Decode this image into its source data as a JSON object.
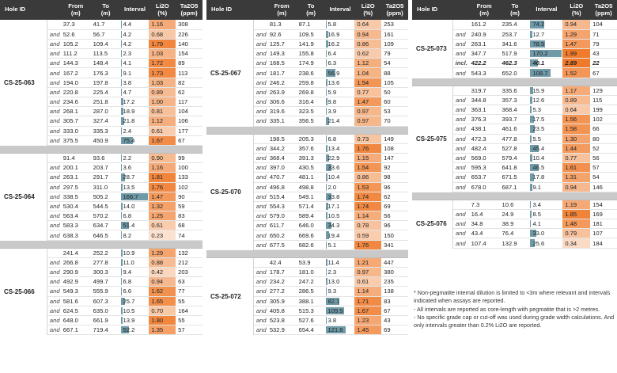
{
  "headers": {
    "hole_id": "Hole ID",
    "from": "From",
    "from_unit": "(m)",
    "to": "To",
    "to_unit": "(m)",
    "interval": "Interval",
    "li2o": "Li2O",
    "li2o_unit": "(%)",
    "ta2o5": "Ta2O5",
    "ta2o5_unit": "(ppm)"
  },
  "colors": {
    "header_bg": "#3a3a3a",
    "interval_bar": "#6f9aa8",
    "li2o_low": "#fbe4d3",
    "li2o_high": "#f07a2a",
    "separator": "#c9c9c9"
  },
  "panels": [
    {
      "holes": [
        {
          "id": "CS-25-063",
          "rows": [
            {
              "pre": "",
              "from": "37.3",
              "to": "41.7",
              "interval": "4.4",
              "li2o": "1.16",
              "ta2o5": "308"
            },
            {
              "pre": "and",
              "from": "52.6",
              "to": "56.7",
              "interval": "4.2",
              "li2o": "0.68",
              "ta2o5": "226"
            },
            {
              "pre": "and",
              "from": "105.2",
              "to": "109.4",
              "interval": "4.2",
              "li2o": "1.79",
              "ta2o5": "140"
            },
            {
              "pre": "and",
              "from": "111.2",
              "to": "113.5",
              "interval": "2.3",
              "li2o": "1.03",
              "ta2o5": "154"
            },
            {
              "pre": "and",
              "from": "144.3",
              "to": "148.4",
              "interval": "4.1",
              "li2o": "1.72",
              "ta2o5": "89"
            },
            {
              "pre": "and",
              "from": "167.2",
              "to": "176.3",
              "interval": "9.1",
              "li2o": "1.73",
              "ta2o5": "113"
            },
            {
              "pre": "and",
              "from": "194.0",
              "to": "197.8",
              "interval": "3.8",
              "li2o": "1.03",
              "ta2o5": "82"
            },
            {
              "pre": "and",
              "from": "220.8",
              "to": "225.4",
              "interval": "4.7",
              "li2o": "0.89",
              "ta2o5": "62"
            },
            {
              "pre": "and",
              "from": "234.6",
              "to": "251.8",
              "interval": "17.2",
              "li2o": "1.00",
              "ta2o5": "117"
            },
            {
              "pre": "and",
              "from": "268.1",
              "to": "287.0",
              "interval": "18.9",
              "li2o": "0.81",
              "ta2o5": "104"
            },
            {
              "pre": "and",
              "from": "305.7",
              "to": "327.4",
              "interval": "21.8",
              "li2o": "1.12",
              "ta2o5": "106"
            },
            {
              "pre": "and",
              "from": "333.0",
              "to": "335.3",
              "interval": "2.4",
              "li2o": "0.61",
              "ta2o5": "177"
            },
            {
              "pre": "and",
              "from": "375.5",
              "to": "450.9",
              "interval": "75.4",
              "li2o": "1.67",
              "ta2o5": "67"
            }
          ]
        },
        {
          "id": "CS-25-064",
          "rows": [
            {
              "pre": "",
              "from": "91.4",
              "to": "93.6",
              "interval": "2.2",
              "li2o": "0.90",
              "ta2o5": "99"
            },
            {
              "pre": "and",
              "from": "200.1",
              "to": "203.7",
              "interval": "3.6",
              "li2o": "1.16",
              "ta2o5": "100"
            },
            {
              "pre": "and",
              "from": "263.1",
              "to": "291.7",
              "interval": "28.7",
              "li2o": "1.81",
              "ta2o5": "133"
            },
            {
              "pre": "and",
              "from": "297.5",
              "to": "311.0",
              "interval": "13.5",
              "li2o": "1.76",
              "ta2o5": "102"
            },
            {
              "pre": "and",
              "from": "338.5",
              "to": "505.2",
              "interval": "166.7",
              "li2o": "1.47",
              "ta2o5": "90"
            },
            {
              "pre": "and",
              "from": "530.4",
              "to": "544.5",
              "interval": "14.0",
              "li2o": "1.32",
              "ta2o5": "59"
            },
            {
              "pre": "and",
              "from": "563.4",
              "to": "570.2",
              "interval": "6.8",
              "li2o": "1.25",
              "ta2o5": "83"
            },
            {
              "pre": "and",
              "from": "583.3",
              "to": "634.7",
              "interval": "51.4",
              "li2o": "0.61",
              "ta2o5": "68"
            },
            {
              "pre": "and",
              "from": "638.3",
              "to": "646.5",
              "interval": "8.2",
              "li2o": "0.23",
              "ta2o5": "74"
            }
          ]
        },
        {
          "id": "CS-25-066",
          "rows": [
            {
              "pre": "",
              "from": "241.4",
              "to": "252.2",
              "interval": "10.9",
              "li2o": "1.29",
              "ta2o5": "132"
            },
            {
              "pre": "and",
              "from": "266.8",
              "to": "277.8",
              "interval": "11.0",
              "li2o": "0.88",
              "ta2o5": "212"
            },
            {
              "pre": "and",
              "from": "290.9",
              "to": "300.3",
              "interval": "9.4",
              "li2o": "0.42",
              "ta2o5": "203"
            },
            {
              "pre": "and",
              "from": "492.9",
              "to": "499.7",
              "interval": "6.8",
              "li2o": "0.94",
              "ta2o5": "63"
            },
            {
              "pre": "and",
              "from": "549.3",
              "to": "555.9",
              "interval": "6.6",
              "li2o": "1.62",
              "ta2o5": "77"
            },
            {
              "pre": "and",
              "from": "581.6",
              "to": "607.3",
              "interval": "25.7",
              "li2o": "1.65",
              "ta2o5": "55"
            },
            {
              "pre": "and",
              "from": "624.5",
              "to": "635.0",
              "interval": "10.5",
              "li2o": "0.70",
              "ta2o5": "164"
            },
            {
              "pre": "and",
              "from": "648.0",
              "to": "661.9",
              "interval": "13.9",
              "li2o": "1.80",
              "ta2o5": "55"
            },
            {
              "pre": "and",
              "from": "667.1",
              "to": "719.4",
              "interval": "52.2",
              "li2o": "1.35",
              "ta2o5": "57"
            }
          ]
        }
      ]
    },
    {
      "holes": [
        {
          "id": "CS-25-067",
          "rows": [
            {
              "pre": "",
              "from": "81.3",
              "to": "87.1",
              "interval": "5.8",
              "li2o": "0.64",
              "ta2o5": "253"
            },
            {
              "pre": "and",
              "from": "92.6",
              "to": "109.5",
              "interval": "16.9",
              "li2o": "0.94",
              "ta2o5": "161"
            },
            {
              "pre": "and",
              "from": "125.7",
              "to": "141.9",
              "interval": "16.2",
              "li2o": "0.86",
              "ta2o5": "109"
            },
            {
              "pre": "and",
              "from": "149.3",
              "to": "155.8",
              "interval": "6.4",
              "li2o": "0.62",
              "ta2o5": "79"
            },
            {
              "pre": "and",
              "from": "168.5",
              "to": "174.9",
              "interval": "6.3",
              "li2o": "1.12",
              "ta2o5": "54"
            },
            {
              "pre": "and",
              "from": "181.7",
              "to": "238.6",
              "interval": "56.9",
              "li2o": "1.04",
              "ta2o5": "88"
            },
            {
              "pre": "and",
              "from": "246.2",
              "to": "259.8",
              "interval": "13.6",
              "li2o": "1.54",
              "ta2o5": "105"
            },
            {
              "pre": "and",
              "from": "263.9",
              "to": "269.8",
              "interval": "5.9",
              "li2o": "0.77",
              "ta2o5": "50"
            },
            {
              "pre": "and",
              "from": "306.6",
              "to": "316.4",
              "interval": "9.8",
              "li2o": "1.47",
              "ta2o5": "60"
            },
            {
              "pre": "and",
              "from": "319.6",
              "to": "323.5",
              "interval": "3.9",
              "li2o": "0.97",
              "ta2o5": "53"
            },
            {
              "pre": "and",
              "from": "335.1",
              "to": "356.5",
              "interval": "21.4",
              "li2o": "0.97",
              "ta2o5": "70"
            }
          ]
        },
        {
          "id": "CS-25-070",
          "rows": [
            {
              "pre": "",
              "from": "198.5",
              "to": "205.3",
              "interval": "6.8",
              "li2o": "0.73",
              "ta2o5": "149"
            },
            {
              "pre": "and",
              "from": "344.2",
              "to": "357.6",
              "interval": "13.4",
              "li2o": "1.76",
              "ta2o5": "108"
            },
            {
              "pre": "and",
              "from": "368.4",
              "to": "391.3",
              "interval": "22.9",
              "li2o": "1.15",
              "ta2o5": "147"
            },
            {
              "pre": "and",
              "from": "397.0",
              "to": "430.5",
              "interval": "33.6",
              "li2o": "1.54",
              "ta2o5": "92"
            },
            {
              "pre": "and",
              "from": "470.7",
              "to": "481.1",
              "interval": "10.4",
              "li2o": "0.86",
              "ta2o5": "98"
            },
            {
              "pre": "and",
              "from": "496.8",
              "to": "498.8",
              "interval": "2.0",
              "li2o": "1.53",
              "ta2o5": "96"
            },
            {
              "pre": "and",
              "from": "515.4",
              "to": "549.1",
              "interval": "33.8",
              "li2o": "1.74",
              "ta2o5": "62"
            },
            {
              "pre": "and",
              "from": "554.3",
              "to": "571.4",
              "interval": "17.1",
              "li2o": "1.74",
              "ta2o5": "69"
            },
            {
              "pre": "and",
              "from": "579.0",
              "to": "589.4",
              "interval": "10.5",
              "li2o": "1.14",
              "ta2o5": "56"
            },
            {
              "pre": "and",
              "from": "611.7",
              "to": "646.0",
              "interval": "34.3",
              "li2o": "0.78",
              "ta2o5": "96"
            },
            {
              "pre": "and",
              "from": "650.2",
              "to": "669.6",
              "interval": "19.4",
              "li2o": "0.59",
              "ta2o5": "150"
            },
            {
              "pre": "and",
              "from": "677.5",
              "to": "682.6",
              "interval": "5.1",
              "li2o": "1.76",
              "ta2o5": "341"
            }
          ]
        },
        {
          "id": "CS-25-072",
          "rows": [
            {
              "pre": "",
              "from": "42.4",
              "to": "53.9",
              "interval": "11.4",
              "li2o": "1.21",
              "ta2o5": "447"
            },
            {
              "pre": "and",
              "from": "178.7",
              "to": "181.0",
              "interval": "2.3",
              "li2o": "0.97",
              "ta2o5": "380"
            },
            {
              "pre": "and",
              "from": "234.2",
              "to": "247.2",
              "interval": "13.0",
              "li2o": "0.61",
              "ta2o5": "235"
            },
            {
              "pre": "and",
              "from": "277.2",
              "to": "286.5",
              "interval": "9.3",
              "li2o": "1.14",
              "ta2o5": "138"
            },
            {
              "pre": "and",
              "from": "305.9",
              "to": "388.1",
              "interval": "82.1",
              "li2o": "1.71",
              "ta2o5": "83"
            },
            {
              "pre": "and",
              "from": "405.8",
              "to": "515.3",
              "interval": "109.5",
              "li2o": "1.67",
              "ta2o5": "67"
            },
            {
              "pre": "and",
              "from": "523.8",
              "to": "527.6",
              "interval": "3.8",
              "li2o": "1.23",
              "ta2o5": "43"
            },
            {
              "pre": "and",
              "from": "532.9",
              "to": "654.4",
              "interval": "121.6",
              "li2o": "1.45",
              "ta2o5": "69"
            }
          ]
        }
      ]
    },
    {
      "holes": [
        {
          "id": "CS-25-073",
          "rows": [
            {
              "pre": "",
              "from": "161.2",
              "to": "235.4",
              "interval": "74.2",
              "li2o": "0.94",
              "ta2o5": "104"
            },
            {
              "pre": "and",
              "from": "240.9",
              "to": "253.7",
              "interval": "12.7",
              "li2o": "1.29",
              "ta2o5": "71"
            },
            {
              "pre": "and",
              "from": "263.1",
              "to": "341.6",
              "interval": "78.5",
              "li2o": "1.47",
              "ta2o5": "79"
            },
            {
              "pre": "and",
              "from": "347.7",
              "to": "517.9",
              "interval": "170.2",
              "li2o": "1.99",
              "ta2o5": "43"
            },
            {
              "pre": "incl.",
              "from": "422.2",
              "to": "462.3",
              "interval": "40.1",
              "li2o": "2.89",
              "ta2o5": "22",
              "incl": true
            },
            {
              "pre": "and",
              "from": "543.3",
              "to": "652.0",
              "interval": "108.7",
              "li2o": "1.52",
              "ta2o5": "67"
            }
          ]
        },
        {
          "id": "CS-25-075",
          "rows": [
            {
              "pre": "",
              "from": "319.7",
              "to": "335.6",
              "interval": "15.9",
              "li2o": "1.17",
              "ta2o5": "129"
            },
            {
              "pre": "and",
              "from": "344.8",
              "to": "357.3",
              "interval": "12.6",
              "li2o": "0.89",
              "ta2o5": "115"
            },
            {
              "pre": "and",
              "from": "363.1",
              "to": "368.4",
              "interval": "5.3",
              "li2o": "0.64",
              "ta2o5": "199"
            },
            {
              "pre": "and",
              "from": "376.3",
              "to": "393.7",
              "interval": "17.5",
              "li2o": "1.56",
              "ta2o5": "102"
            },
            {
              "pre": "and",
              "from": "438.1",
              "to": "461.6",
              "interval": "23.5",
              "li2o": "1.58",
              "ta2o5": "66"
            },
            {
              "pre": "and",
              "from": "472.3",
              "to": "477.8",
              "interval": "5.5",
              "li2o": "1.30",
              "ta2o5": "80"
            },
            {
              "pre": "and",
              "from": "482.4",
              "to": "527.8",
              "interval": "45.4",
              "li2o": "1.44",
              "ta2o5": "52"
            },
            {
              "pre": "and",
              "from": "569.0",
              "to": "579.4",
              "interval": "10.4",
              "li2o": "0.77",
              "ta2o5": "56"
            },
            {
              "pre": "and",
              "from": "595.3",
              "to": "641.8",
              "interval": "46.5",
              "li2o": "1.61",
              "ta2o5": "57"
            },
            {
              "pre": "and",
              "from": "653.7",
              "to": "671.5",
              "interval": "17.8",
              "li2o": "1.31",
              "ta2o5": "54"
            },
            {
              "pre": "and",
              "from": "678.0",
              "to": "687.1",
              "interval": "9.1",
              "li2o": "0.94",
              "ta2o5": "146"
            }
          ]
        },
        {
          "id": "CS-25-076",
          "rows": [
            {
              "pre": "",
              "from": "7.3",
              "to": "10.6",
              "interval": "3.4",
              "li2o": "1.19",
              "ta2o5": "154"
            },
            {
              "pre": "and",
              "from": "16.4",
              "to": "24.9",
              "interval": "8.5",
              "li2o": "1.85",
              "ta2o5": "169"
            },
            {
              "pre": "and",
              "from": "34.8",
              "to": "38.9",
              "interval": "4.1",
              "li2o": "1.48",
              "ta2o5": "181"
            },
            {
              "pre": "and",
              "from": "43.4",
              "to": "76.4",
              "interval": "33.0",
              "li2o": "0.79",
              "ta2o5": "107"
            },
            {
              "pre": "and",
              "from": "107.4",
              "to": "132.9",
              "interval": "25.6",
              "li2o": "0.34",
              "ta2o5": "184"
            }
          ]
        }
      ]
    }
  ],
  "notes": [
    "* Non-pegmatite internal dilution is limited to <3m where relevant and intervals indicated when assays are reported.",
    "- All intervals are reported as core-length with pegmatite that is >2 metres.",
    "- No specific grade cap or cut-off was used during grade width calculations. And only intervals greater than 0.2% Li2O are reported."
  ]
}
